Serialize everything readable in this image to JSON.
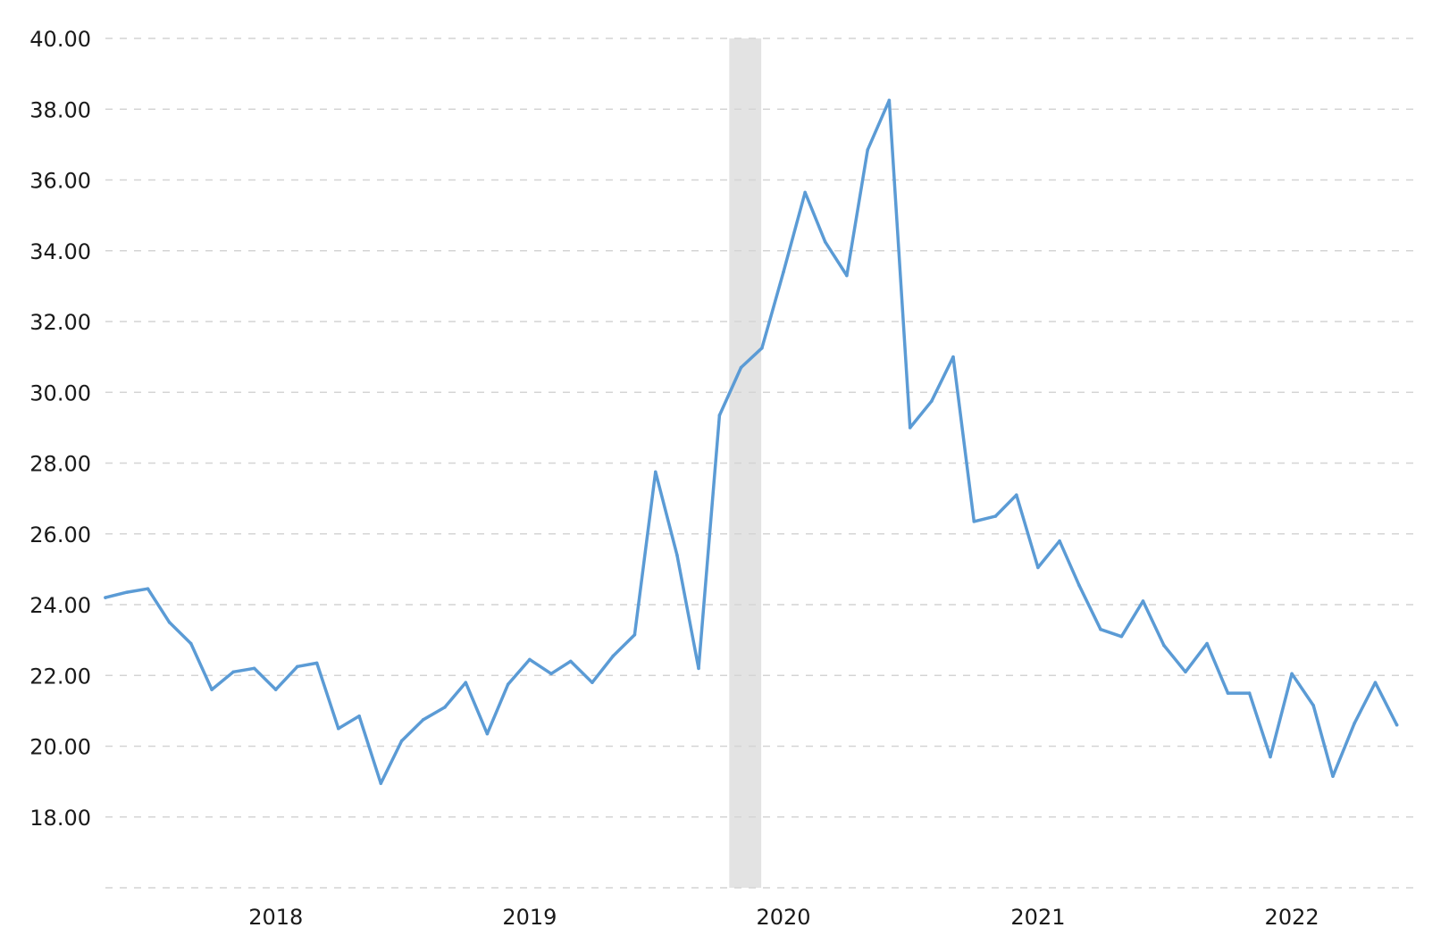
{
  "chart_data": {
    "type": "line",
    "title": "",
    "xlabel": "",
    "ylabel": "",
    "ylim": [
      16,
      40
    ],
    "xlim": [
      "2017-05-01",
      "2022-07-01"
    ],
    "grid": true,
    "y_ticks": [
      "18.00",
      "20.00",
      "22.00",
      "24.00",
      "26.00",
      "28.00",
      "30.00",
      "32.00",
      "34.00",
      "36.00",
      "38.00",
      "40.00"
    ],
    "x_ticks": [
      {
        "label": "2018",
        "date": "2018-01-01"
      },
      {
        "label": "2019",
        "date": "2019-01-01"
      },
      {
        "label": "2020",
        "date": "2020-01-01"
      },
      {
        "label": "2021",
        "date": "2021-01-01"
      },
      {
        "label": "2022",
        "date": "2022-01-01"
      }
    ],
    "shaded_regions": [
      {
        "start": "2019-10-15",
        "end": "2019-11-30",
        "color": "#e3e3e3"
      }
    ],
    "series": [
      {
        "color": "#5b9bd5",
        "points": [
          [
            "2017-05-01",
            24.2
          ],
          [
            "2017-06-01",
            24.35
          ],
          [
            "2017-07-01",
            24.45
          ],
          [
            "2017-08-01",
            23.5
          ],
          [
            "2017-09-01",
            22.9
          ],
          [
            "2017-10-01",
            21.6
          ],
          [
            "2017-11-01",
            22.1
          ],
          [
            "2017-12-01",
            22.2
          ],
          [
            "2018-01-01",
            21.6
          ],
          [
            "2018-02-01",
            22.25
          ],
          [
            "2018-03-01",
            22.35
          ],
          [
            "2018-04-01",
            20.5
          ],
          [
            "2018-05-01",
            20.85
          ],
          [
            "2018-06-01",
            18.95
          ],
          [
            "2018-07-01",
            20.15
          ],
          [
            "2018-08-01",
            20.75
          ],
          [
            "2018-09-01",
            21.1
          ],
          [
            "2018-10-01",
            21.8
          ],
          [
            "2018-11-01",
            20.35
          ],
          [
            "2018-12-01",
            21.75
          ],
          [
            "2019-01-01",
            22.45
          ],
          [
            "2019-02-01",
            22.05
          ],
          [
            "2019-03-01",
            22.4
          ],
          [
            "2019-04-01",
            21.8
          ],
          [
            "2019-05-01",
            22.55
          ],
          [
            "2019-06-01",
            23.15
          ],
          [
            "2019-07-01",
            27.75
          ],
          [
            "2019-08-01",
            25.4
          ],
          [
            "2019-09-01",
            22.2
          ],
          [
            "2019-10-01",
            29.35
          ],
          [
            "2019-11-01",
            30.7
          ],
          [
            "2019-12-01",
            31.25
          ],
          [
            "2020-01-01",
            33.4
          ],
          [
            "2020-02-01",
            35.65
          ],
          [
            "2020-03-01",
            34.25
          ],
          [
            "2020-04-01",
            33.3
          ],
          [
            "2020-05-01",
            36.85
          ],
          [
            "2020-06-01",
            38.25
          ],
          [
            "2020-07-01",
            29.0
          ],
          [
            "2020-08-01",
            29.75
          ],
          [
            "2020-09-01",
            31.0
          ],
          [
            "2020-10-01",
            26.35
          ],
          [
            "2020-11-01",
            26.5
          ],
          [
            "2020-12-01",
            27.1
          ],
          [
            "2021-01-01",
            25.05
          ],
          [
            "2021-02-01",
            25.8
          ],
          [
            "2021-03-01",
            24.55
          ],
          [
            "2021-04-01",
            23.3
          ],
          [
            "2021-05-01",
            23.1
          ],
          [
            "2021-06-01",
            24.1
          ],
          [
            "2021-07-01",
            22.85
          ],
          [
            "2021-08-01",
            22.1
          ],
          [
            "2021-09-01",
            22.9
          ],
          [
            "2021-10-01",
            21.5
          ],
          [
            "2021-11-01",
            21.5
          ],
          [
            "2021-12-01",
            19.7
          ],
          [
            "2022-01-01",
            22.05
          ],
          [
            "2022-02-01",
            21.15
          ],
          [
            "2022-03-01",
            19.15
          ],
          [
            "2022-04-01",
            20.65
          ],
          [
            "2022-05-01",
            21.8
          ],
          [
            "2022-06-01",
            20.6
          ]
        ]
      }
    ]
  }
}
